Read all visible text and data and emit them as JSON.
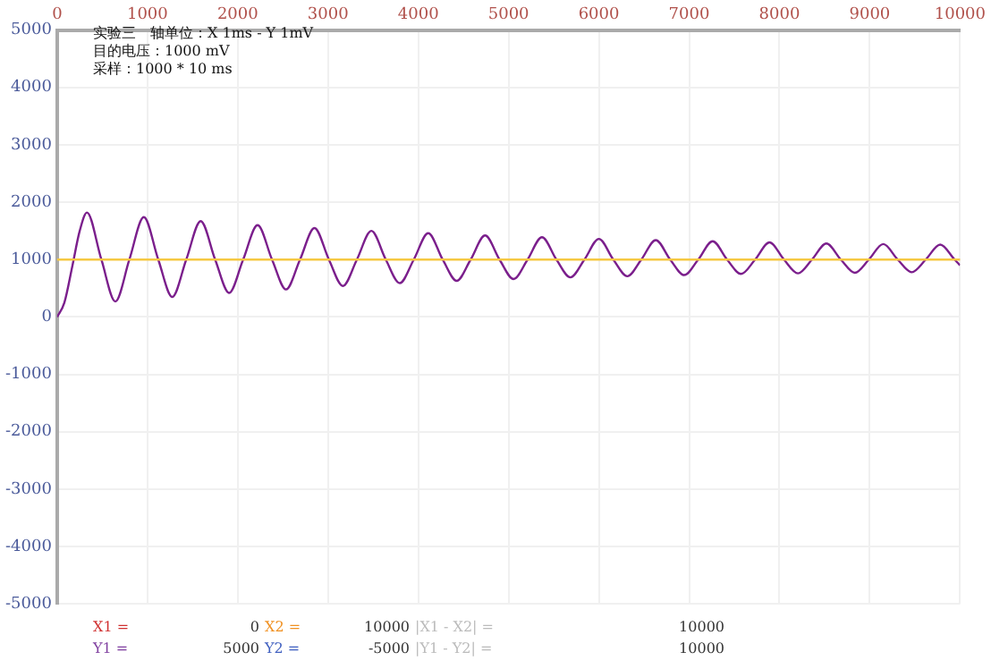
{
  "chart_data": {
    "type": "line",
    "xlim": [
      0,
      10000
    ],
    "xticks": [
      0,
      1000,
      2000,
      3000,
      4000,
      5000,
      6000,
      7000,
      8000,
      9000,
      10000
    ],
    "ylim": [
      -5000,
      5000
    ],
    "yticks": [
      -5000,
      -4000,
      -3000,
      -2000,
      -1000,
      0,
      1000,
      2000,
      3000,
      4000,
      5000
    ],
    "grid": true,
    "marker": "none",
    "line_style": "solid",
    "series": [
      {
        "color": "#7b1f8c",
        "x": [
          0,
          80,
          170,
          250,
          330,
          490,
          645,
          800,
          960,
          1120,
          1275,
          1430,
          1590,
          1750,
          1905,
          2060,
          2220,
          2380,
          2535,
          2690,
          2850,
          3010,
          3165,
          3320,
          3480,
          3640,
          3795,
          3950,
          4110,
          4270,
          4425,
          4580,
          4740,
          4900,
          5055,
          5210,
          5370,
          5530,
          5685,
          5840,
          6000,
          6160,
          6315,
          6470,
          6630,
          6790,
          6945,
          7100,
          7260,
          7420,
          7575,
          7730,
          7890,
          8050,
          8205,
          8360,
          8520,
          8680,
          8835,
          8990,
          9150,
          9310,
          9465,
          9620,
          9780,
          9940,
          10000
        ],
        "values": [
          0,
          250,
          900,
          1500,
          1820,
          1000,
          270,
          1000,
          1740,
          1000,
          350,
          1000,
          1670,
          1000,
          420,
          1000,
          1600,
          1000,
          480,
          1000,
          1550,
          1000,
          540,
          1000,
          1500,
          1000,
          590,
          1000,
          1460,
          1000,
          630,
          1000,
          1420,
          1000,
          660,
          1000,
          1390,
          1000,
          690,
          1000,
          1360,
          1000,
          710,
          1000,
          1340,
          1000,
          730,
          1000,
          1320,
          1000,
          750,
          1000,
          1300,
          1000,
          760,
          1000,
          1280,
          1000,
          770,
          1000,
          1270,
          1000,
          780,
          1000,
          1260,
          1000,
          900
        ]
      }
    ],
    "ref_lines": [
      {
        "axis": "y",
        "value": 1000,
        "color": "#f5c842"
      }
    ],
    "annotations": [
      "实验三　轴单位：X 1ms - Y 1mV",
      "目的电压：1000 mV",
      "采样：1000 * 10 ms",
      "X1 =",
      "0",
      "X2 =",
      "10000",
      "|X1 - X2| =",
      "10000",
      "Y1 =",
      "5000",
      "Y2 =",
      "-5000",
      "|Y1 - Y2| =",
      "10000"
    ]
  }
}
